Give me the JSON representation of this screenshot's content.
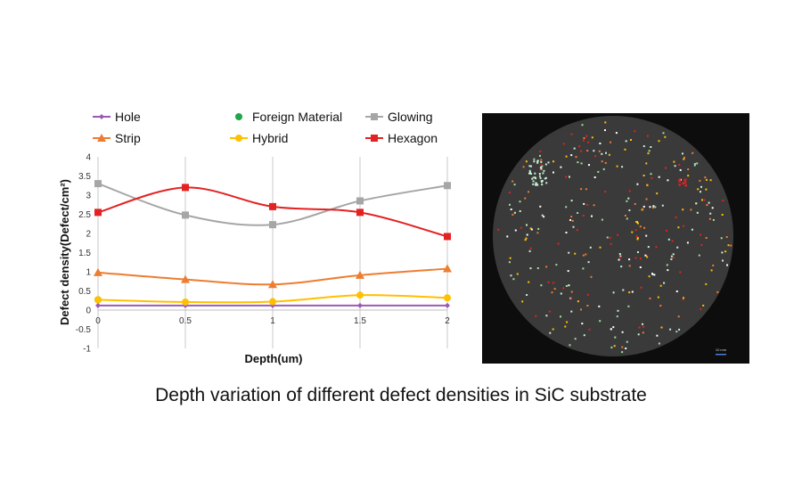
{
  "chart_data": {
    "type": "line",
    "title": "",
    "xlabel": "Depth(um)",
    "ylabel": "Defect density(Defect/cm²)",
    "x": [
      0,
      0.5,
      1,
      1.5,
      2
    ],
    "x_tick_labels": [
      "0",
      "0.5",
      "1",
      "1.5",
      "2"
    ],
    "ylim": [
      -1,
      4
    ],
    "y_tick_labels": [
      "-1",
      "-0.5",
      "0",
      "0.5",
      "1",
      "1.5",
      "2",
      "2.5",
      "3",
      "3.5",
      "4"
    ],
    "grid": "vertical",
    "legend_position": "top",
    "series": [
      {
        "name": "Hole",
        "color": "#9b59b6",
        "marker": "diamond",
        "values": [
          0.12,
          0.12,
          0.12,
          0.12,
          0.12
        ]
      },
      {
        "name": "Foreign Material",
        "color": "#1fa64a",
        "marker": "circle",
        "values": [
          0.27,
          null,
          null,
          null,
          null
        ]
      },
      {
        "name": "Glowing",
        "color": "#a6a6a6",
        "marker": "square",
        "values": [
          3.3,
          2.48,
          2.23,
          2.85,
          3.25
        ]
      },
      {
        "name": "Strip",
        "color": "#ed7d31",
        "marker": "triangle",
        "values": [
          0.98,
          0.8,
          0.67,
          0.91,
          1.08
        ]
      },
      {
        "name": "Hybrid",
        "color": "#ffc000",
        "marker": "circle",
        "values": [
          0.27,
          0.21,
          0.22,
          0.39,
          0.32
        ]
      },
      {
        "name": "Hexagon",
        "color": "#e32222",
        "marker": "square",
        "values": [
          2.55,
          3.2,
          2.7,
          2.55,
          1.92
        ]
      }
    ]
  },
  "wafer_image": {
    "scale_bar_label": "10 mm",
    "background_color": "#0d0d0d",
    "wafer_color": "#3a3a3a",
    "defect_colors": [
      "#e32222",
      "#ed7d31",
      "#ffffff",
      "#c8f0d8",
      "#ffc000",
      "#9fe0a0"
    ]
  },
  "caption": "Depth variation of different defect densities in SiC substrate"
}
